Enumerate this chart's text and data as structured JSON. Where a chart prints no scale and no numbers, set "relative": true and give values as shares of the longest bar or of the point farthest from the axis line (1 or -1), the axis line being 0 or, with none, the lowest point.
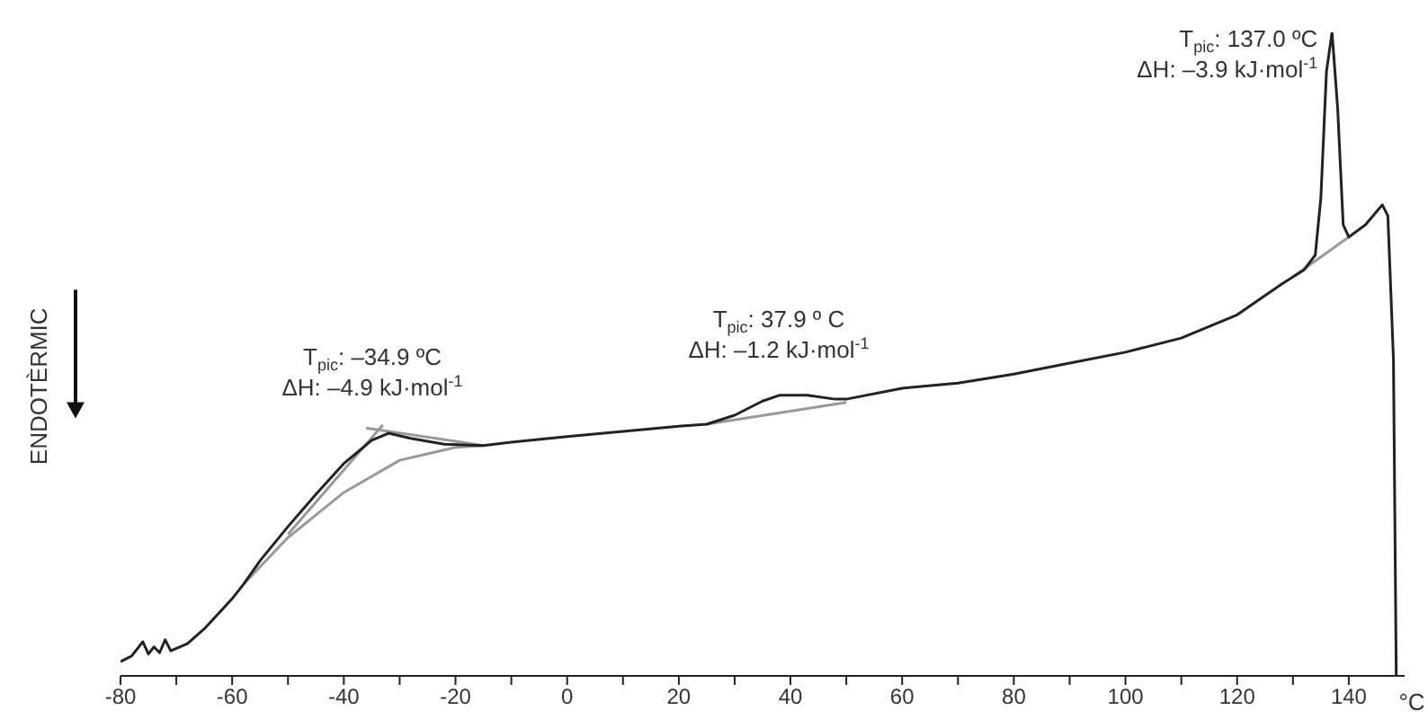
{
  "chart_data": {
    "type": "line",
    "relative": true,
    "ylabel": "ENDOTÈRMIC",
    "xlabel": "°C",
    "xlim": [
      -80,
      150
    ],
    "xticks": [
      -80,
      {
        "value": -70,
        "label": null
      },
      -60,
      {
        "value": -50,
        "label": null
      },
      -40,
      {
        "value": -30,
        "label": null
      },
      -20,
      {
        "value": -10,
        "label": null
      },
      0,
      {
        "value": 10,
        "label": null
      },
      20,
      {
        "value": 30,
        "label": null
      },
      40,
      {
        "value": 50,
        "label": null
      },
      60,
      {
        "value": 70,
        "label": null
      },
      80,
      {
        "value": 90,
        "label": null
      },
      100,
      {
        "value": 110,
        "label": null
      },
      120,
      {
        "value": 130,
        "label": null
      },
      140
    ],
    "series": [
      {
        "color": "#999999",
        "x": [
          -58,
          -50,
          -40,
          -30,
          -20,
          -15
        ],
        "values": [
          0.142,
          0.215,
          0.285,
          0.335,
          0.355,
          0.358
        ]
      },
      {
        "color": "#999999",
        "x": [
          -50,
          -33
        ],
        "values": [
          0.22,
          0.39
        ]
      },
      {
        "color": "#999999",
        "x": [
          -36,
          -15
        ],
        "values": [
          0.385,
          0.358
        ]
      },
      {
        "color": "#999999",
        "x": [
          25,
          50
        ],
        "values": [
          0.391,
          0.425
        ]
      },
      {
        "color": "#999999",
        "x": [
          130,
          140
        ],
        "values": [
          0.62,
          0.682
        ]
      },
      {
        "color": "#222222",
        "x": [
          -80,
          -78,
          -76,
          -75,
          -74,
          -73,
          -72,
          -71,
          -68,
          -65,
          -60,
          -58,
          -55,
          -50,
          -45,
          -40,
          -35,
          -32,
          -28,
          -22,
          -15,
          -10,
          0,
          10,
          20,
          25,
          30,
          35,
          38,
          43,
          48,
          50,
          60,
          70,
          80,
          90,
          100,
          110,
          120,
          128,
          132,
          134,
          135,
          136,
          137,
          138,
          139,
          140,
          143,
          146,
          147,
          148,
          148.5
        ],
        "values": [
          0.022,
          0.031,
          0.053,
          0.034,
          0.045,
          0.036,
          0.056,
          0.039,
          0.05,
          0.073,
          0.12,
          0.142,
          0.179,
          0.232,
          0.282,
          0.33,
          0.366,
          0.377,
          0.369,
          0.36,
          0.358,
          0.363,
          0.372,
          0.38,
          0.388,
          0.391,
          0.405,
          0.427,
          0.436,
          0.436,
          0.43,
          0.43,
          0.447,
          0.455,
          0.469,
          0.486,
          0.503,
          0.525,
          0.561,
          0.609,
          0.631,
          0.654,
          0.743,
          0.939,
          1,
          0.883,
          0.701,
          0.682,
          0.701,
          0.732,
          0.715,
          0.492,
          0
        ]
      }
    ],
    "annotations": [
      {
        "text": "T$_{pic}$: –34.9 ºC\nΔH: –4.9 kJ·mol$^{-1}$",
        "x": -34.9,
        "y": 0.377
      },
      {
        "text": "T$_{pic}$: 37.9 º C\nΔH: –1.2 kJ·mol$^{-1}$",
        "x": 37.9,
        "y": 0.436
      },
      {
        "text": "T$_{pic}$: 137.0 ºC\nΔH: –3.9 kJ·mol$^{-1}$",
        "x": 137,
        "y": 1
      }
    ]
  }
}
